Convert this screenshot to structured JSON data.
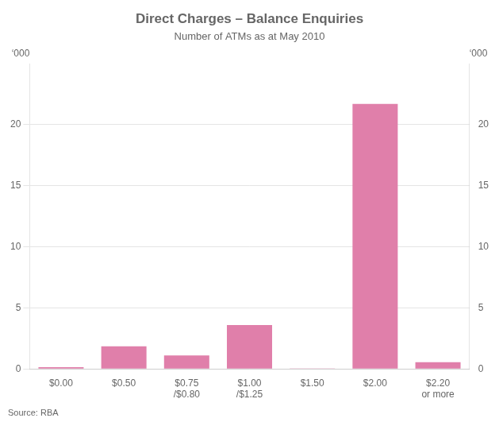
{
  "chart_data": {
    "type": "bar",
    "title": "Direct Charges – Balance Enquiries",
    "subtitle": "Number of ATMs as at May 2010",
    "source": "Source: RBA",
    "ylabel": "‘000",
    "y2label": "‘000",
    "categories": [
      "$0.00",
      "$0.50",
      "$0.75\n/$0.80",
      "$1.00\n/$1.25",
      "$1.50",
      "$2.00",
      "$2.20\nor more"
    ],
    "values": [
      0.15,
      1.85,
      1.1,
      3.6,
      0.05,
      21.7,
      0.55
    ],
    "color": "#e07faa",
    "ylim": [
      0,
      25
    ],
    "yticks": [
      0,
      5,
      10,
      15,
      20
    ],
    "y2lim": [
      0,
      25
    ],
    "y2ticks": [
      0,
      5,
      10,
      15,
      20
    ],
    "grid": true
  }
}
